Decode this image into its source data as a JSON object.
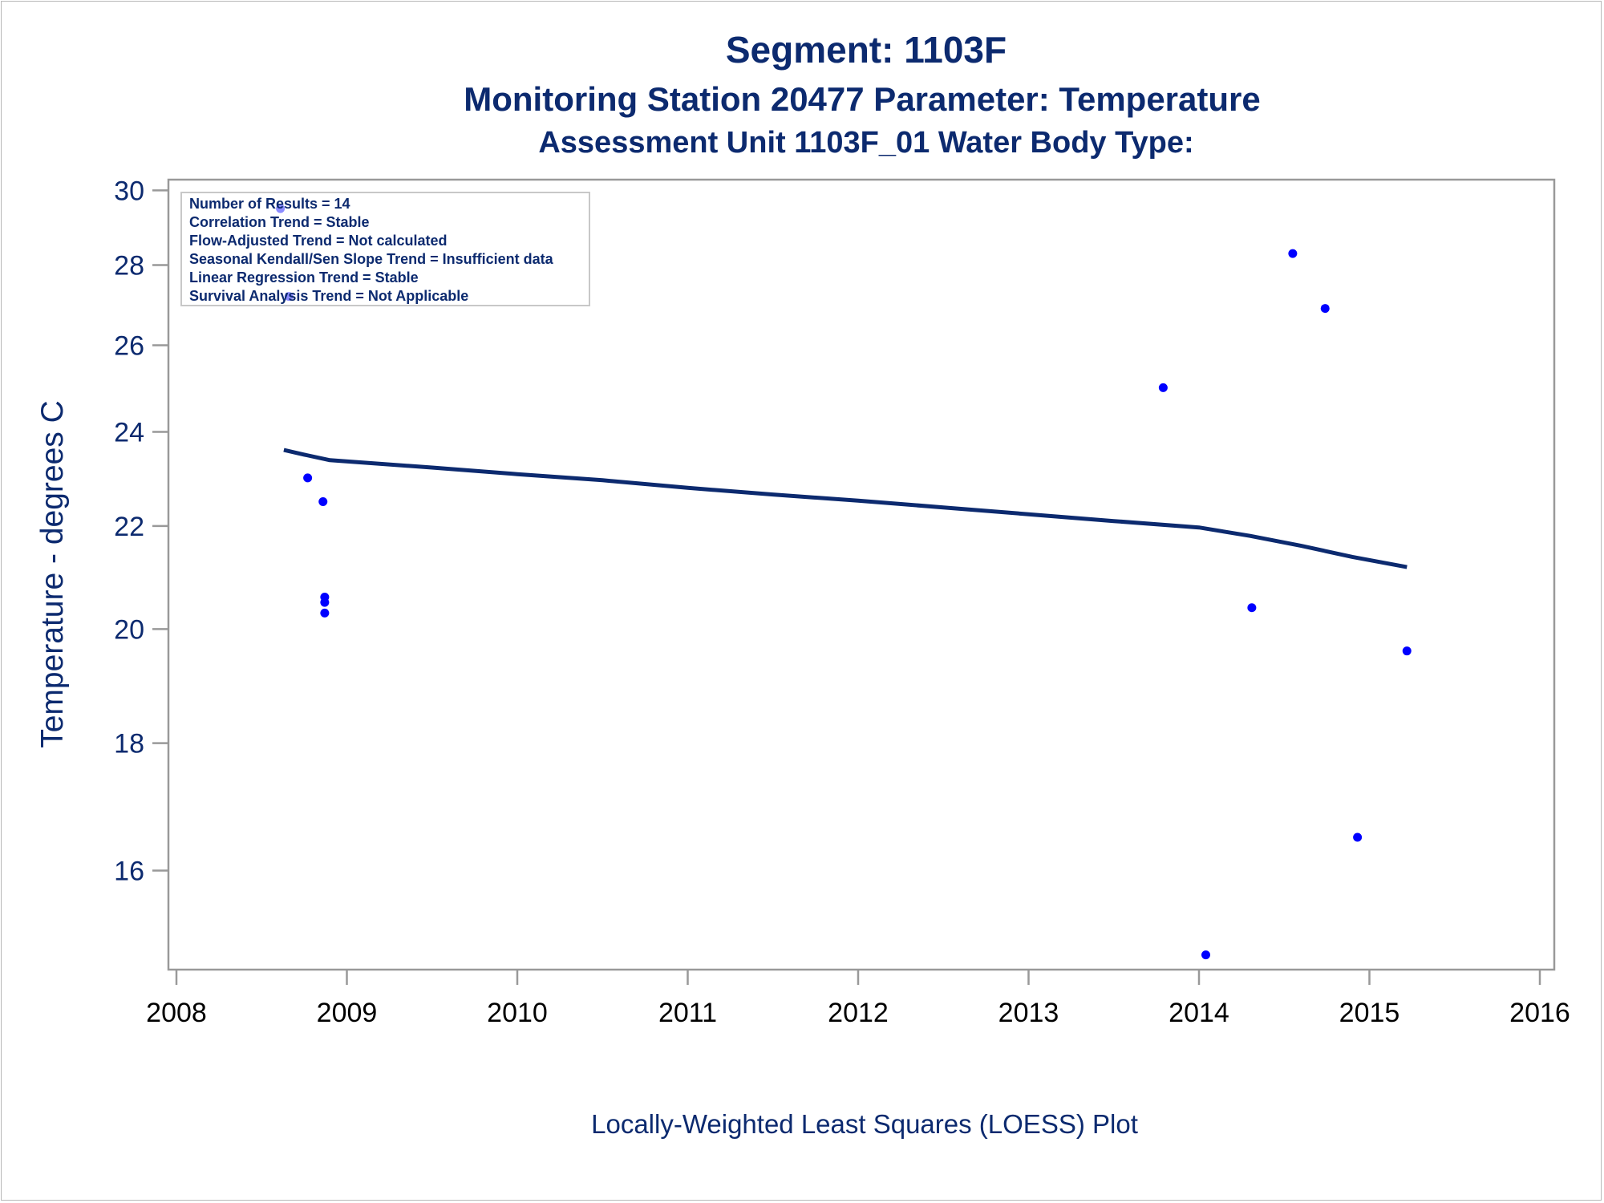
{
  "titles": {
    "line1": "Segment: 1103F",
    "line2": "Monitoring Station 20477 Parameter: Temperature",
    "line3": "Assessment Unit 1103F_01   Water Body Type:"
  },
  "stats_box": [
    "Number of Results = 14",
    "Correlation Trend = Stable",
    "Flow-Adjusted Trend = Not calculated",
    "Seasonal Kendall/Sen Slope Trend = Insufficient data",
    "Linear Regression Trend = Stable",
    "Survival Analysis Trend = Not Applicable"
  ],
  "footnote": "Locally-Weighted Least Squares (LOESS) Plot",
  "colors": {
    "text": "#0c2a6f",
    "points": "#0000ff",
    "loess": "#0c2a6f",
    "frame": "#999999"
  },
  "chart_data": {
    "type": "scatter",
    "ylabel": "Temperature - degrees C",
    "xlabel": "",
    "xlim": [
      2008,
      2016
    ],
    "ylim": [
      14.6,
      30.3
    ],
    "y_scale": "log",
    "x_ticks": [
      "2008",
      "2009",
      "2010",
      "2011",
      "2012",
      "2013",
      "2014",
      "2015",
      "2016"
    ],
    "y_ticks": [
      "16",
      "18",
      "20",
      "22",
      "24",
      "26",
      "28",
      "30"
    ],
    "grid": false,
    "series": [
      {
        "points": [
          {
            "x": 2008.61,
            "y": 29.5
          },
          {
            "x": 2008.66,
            "y": 27.2
          },
          {
            "x": 2008.77,
            "y": 23.0
          },
          {
            "x": 2008.86,
            "y": 22.5
          },
          {
            "x": 2008.87,
            "y": 20.6
          },
          {
            "x": 2008.87,
            "y": 20.5
          },
          {
            "x": 2008.87,
            "y": 20.3
          },
          {
            "x": 2013.79,
            "y": 25.0
          },
          {
            "x": 2014.04,
            "y": 14.8
          },
          {
            "x": 2014.31,
            "y": 20.4
          },
          {
            "x": 2014.55,
            "y": 28.3
          },
          {
            "x": 2014.74,
            "y": 26.9
          },
          {
            "x": 2014.93,
            "y": 16.5
          },
          {
            "x": 2015.22,
            "y": 19.6
          }
        ]
      },
      {
        "style": "line",
        "points": [
          {
            "x": 2008.63,
            "y": 23.6
          },
          {
            "x": 2008.75,
            "y": 23.5
          },
          {
            "x": 2008.9,
            "y": 23.38
          },
          {
            "x": 2009.5,
            "y": 23.22
          },
          {
            "x": 2010.0,
            "y": 23.08
          },
          {
            "x": 2010.5,
            "y": 22.95
          },
          {
            "x": 2011.0,
            "y": 22.79
          },
          {
            "x": 2011.5,
            "y": 22.65
          },
          {
            "x": 2012.0,
            "y": 22.52
          },
          {
            "x": 2012.5,
            "y": 22.38
          },
          {
            "x": 2013.0,
            "y": 22.24
          },
          {
            "x": 2013.5,
            "y": 22.1
          },
          {
            "x": 2014.0,
            "y": 21.97
          },
          {
            "x": 2014.3,
            "y": 21.8
          },
          {
            "x": 2014.6,
            "y": 21.6
          },
          {
            "x": 2014.9,
            "y": 21.38
          },
          {
            "x": 2015.22,
            "y": 21.18
          }
        ]
      }
    ]
  }
}
